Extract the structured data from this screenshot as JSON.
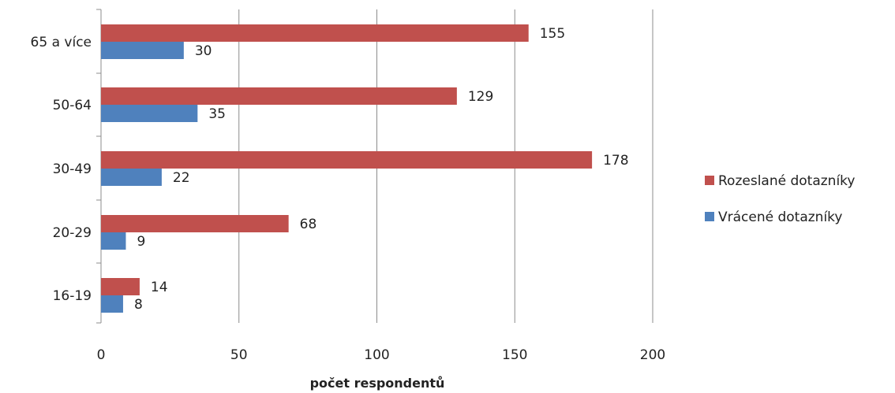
{
  "chart_data": {
    "type": "bar",
    "orientation": "horizontal",
    "categories": [
      "65 a více",
      "50-64",
      "30-49",
      "20-29",
      "16-19"
    ],
    "series": [
      {
        "name": "Rozeslané dotazníky",
        "color": "#c0504d",
        "values": [
          155,
          129,
          178,
          68,
          14
        ]
      },
      {
        "name": "Vrácené dotazníky",
        "color": "#4f81bd",
        "values": [
          30,
          35,
          22,
          9,
          8
        ]
      }
    ],
    "xlabel": "počet respondentů",
    "xlim": [
      0,
      200
    ],
    "xticks": [
      0,
      50,
      100,
      150,
      200
    ],
    "grid": true,
    "legend": "right",
    "data_labels": true
  }
}
